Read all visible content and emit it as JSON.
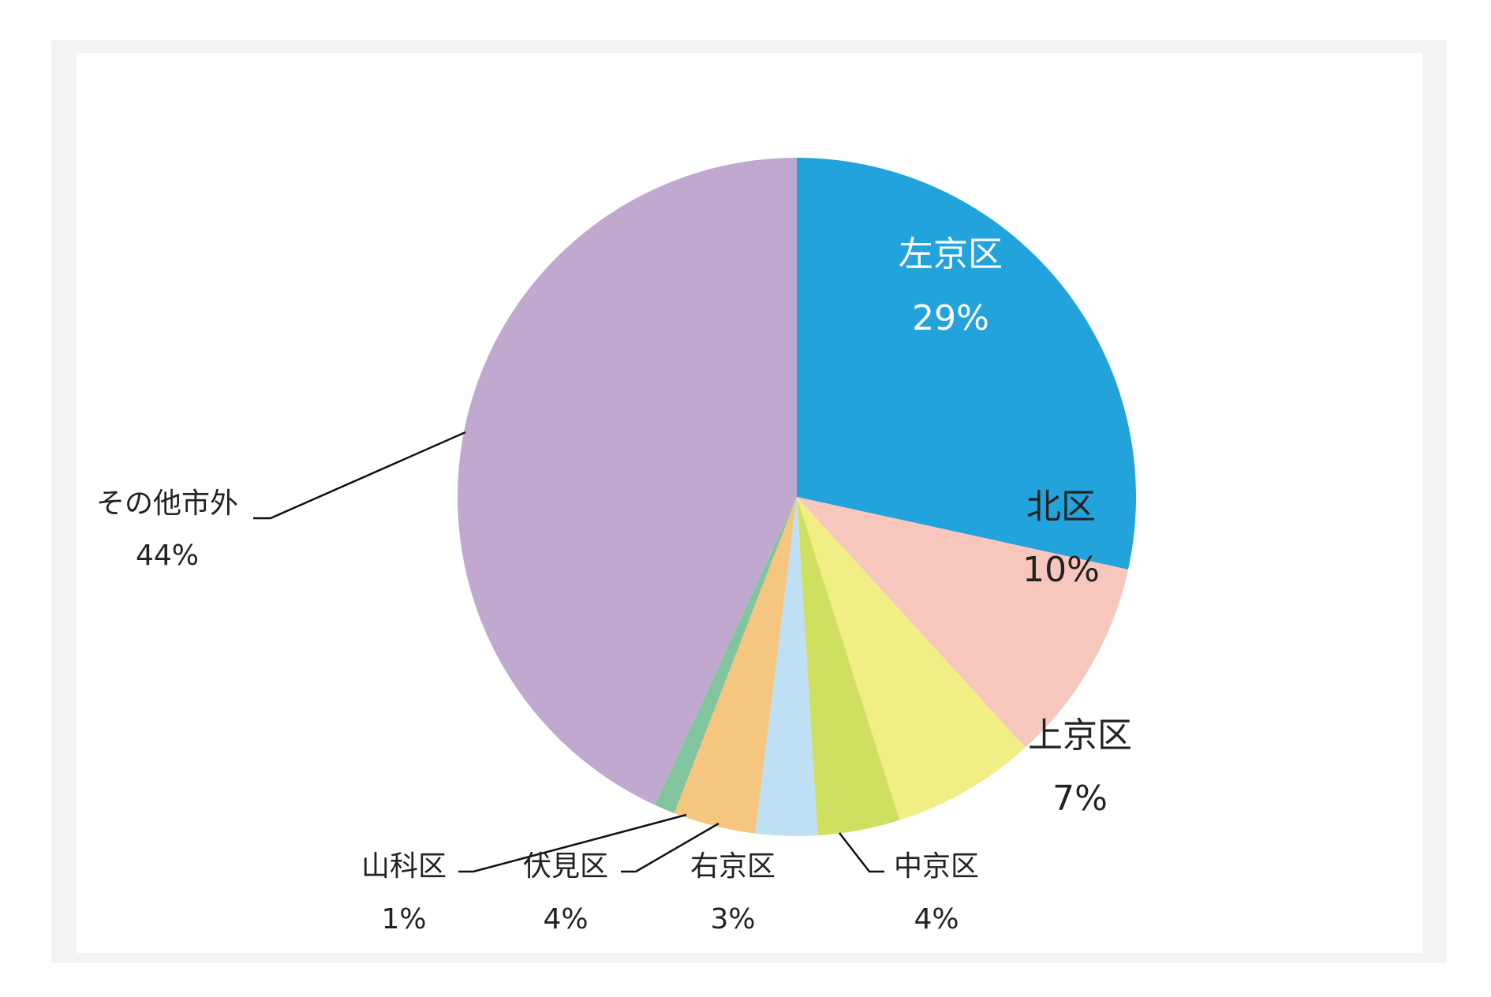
{
  "chart_data": {
    "type": "pie",
    "categories": [
      "左京区",
      "北区",
      "上京区",
      "中京区",
      "右京区",
      "伏見区",
      "山科区",
      "その他市外"
    ],
    "values": [
      29,
      10,
      7,
      4,
      3,
      4,
      1,
      44
    ],
    "value_labels": [
      "29%",
      "10%",
      "7%",
      "4%",
      "3%",
      "4%",
      "1%",
      "44%"
    ],
    "colors": [
      "#22a3dc",
      "#f7c7bd",
      "#f0ee84",
      "#cfe060",
      "#bfdff5",
      "#f5c680",
      "#80c59e",
      "#c1a8cf"
    ]
  }
}
